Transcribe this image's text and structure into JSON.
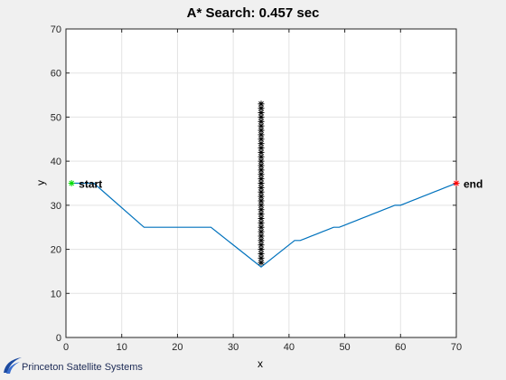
{
  "chart_data": {
    "type": "line",
    "title": "A* Search: 0.457 sec",
    "xlabel": "x",
    "ylabel": "y",
    "xlim": [
      0,
      70
    ],
    "ylim": [
      0,
      70
    ],
    "xticks": [
      0,
      10,
      20,
      30,
      40,
      50,
      60,
      70
    ],
    "yticks": [
      0,
      10,
      20,
      30,
      40,
      50,
      60,
      70
    ],
    "grid": true,
    "series": [
      {
        "style": "line",
        "color": "#0072bd",
        "x": [
          1,
          5,
          14,
          26,
          35,
          41,
          42,
          43,
          44,
          45,
          46,
          47,
          48,
          49,
          50,
          51,
          52,
          53,
          54,
          55,
          56,
          57,
          58,
          59,
          60,
          61,
          62,
          63,
          64,
          65,
          66,
          67,
          68,
          69,
          70
        ],
        "y": [
          35,
          35,
          25,
          25,
          16,
          22,
          22,
          22.5,
          23,
          23.5,
          24,
          24.5,
          25,
          25,
          25.5,
          26,
          26.5,
          27,
          27.5,
          28,
          28.5,
          29,
          29.5,
          30,
          30,
          30.5,
          31,
          31.5,
          32,
          32.5,
          33,
          33.5,
          34,
          34.5,
          35
        ]
      },
      {
        "style": "markers",
        "marker": "*",
        "color": "#000000",
        "x": 35,
        "y": [
          17,
          18,
          19,
          20,
          21,
          22,
          23,
          24,
          25,
          26,
          27,
          28,
          29,
          30,
          31,
          32,
          33,
          34,
          35,
          36,
          37,
          38,
          39,
          40,
          41,
          42,
          43,
          44,
          45,
          46,
          47,
          48,
          49,
          50,
          51,
          52,
          53
        ]
      }
    ],
    "annotations": [
      {
        "text": "start",
        "x": 1,
        "y": 35,
        "marker": "*",
        "color": "#00dd00"
      },
      {
        "text": "end",
        "x": 70,
        "y": 35,
        "marker": "*",
        "color": "#ff0000"
      }
    ]
  },
  "logo": {
    "text": "Princeton Satellite Systems",
    "color": "#1c2a55"
  }
}
